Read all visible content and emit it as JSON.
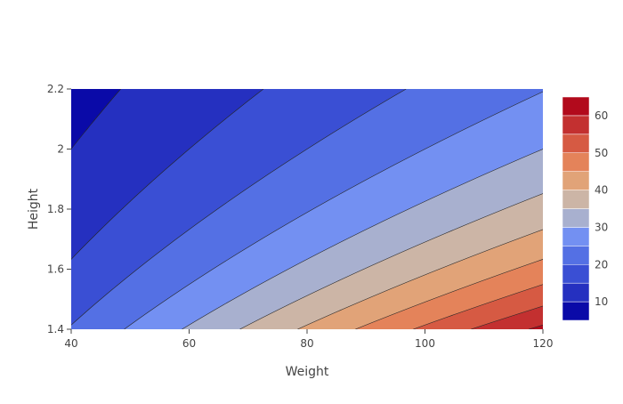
{
  "chart_data": {
    "type": "contour",
    "title": "",
    "xlabel": "Weight",
    "ylabel": "Height",
    "xlim": [
      40,
      120
    ],
    "ylim": [
      1.4,
      2.2
    ],
    "x_ticks": [
      "40",
      "60",
      "80",
      "100",
      "120"
    ],
    "y_ticks": [
      "1.4",
      "1.6",
      "1.8",
      "2",
      "2.2"
    ],
    "colorbar": {
      "ticks": [
        "10",
        "20",
        "30",
        "40",
        "50",
        "60"
      ],
      "range": [
        5,
        65
      ],
      "level_step": 5,
      "colors": [
        "#0a0aa8",
        "#2530c0",
        "#3a4fd4",
        "#5470e4",
        "#7390f2",
        "#a8b0cf",
        "#ccb5a6",
        "#e1a378",
        "#e4835a",
        "#d65a43",
        "#c33030",
        "#b20a1c"
      ]
    },
    "function": "Weight / Height^2",
    "grid": false,
    "legend": "colorbar-right"
  }
}
